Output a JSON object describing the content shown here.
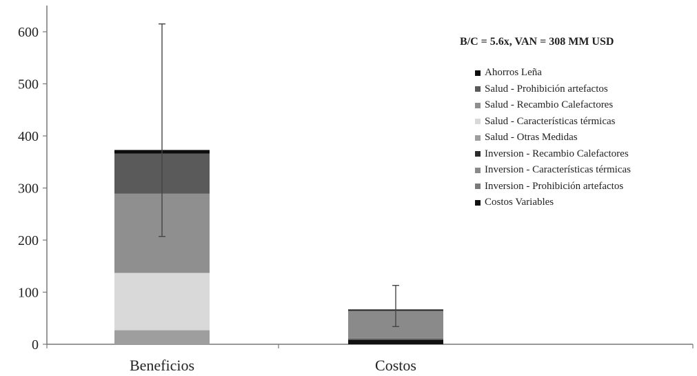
{
  "chart_data": {
    "type": "bar",
    "stacked": true,
    "categories": [
      "Beneficios",
      "Costos"
    ],
    "ylim": [
      0,
      600
    ],
    "yticks": [
      0,
      100,
      200,
      300,
      400,
      500,
      600
    ],
    "legend_title": "B/C = 5.6x, VAN = 308 MM USD",
    "legend_position": "right",
    "series": [
      {
        "name": "Ahorros Leña",
        "color": "#0d0d0d",
        "values": [
          7,
          0
        ]
      },
      {
        "name": "Salud - Prohibición artefactos",
        "color": "#5a5a5a",
        "values": [
          77,
          0
        ]
      },
      {
        "name": "Salud - Recambio Calefactores",
        "color": "#8f8f8f",
        "values": [
          152,
          0
        ]
      },
      {
        "name": "Salud - Características térmicas",
        "color": "#d9d9d9",
        "values": [
          110,
          0
        ]
      },
      {
        "name": "Salud - Otras Medidas",
        "color": "#9e9e9e",
        "values": [
          27,
          0
        ]
      },
      {
        "name": "Inversion - Recambio Calefactores",
        "color": "#2b2b2b",
        "values": [
          0,
          3
        ]
      },
      {
        "name": "Inversion - Características térmicas",
        "color": "#8a8a8a",
        "values": [
          0,
          52
        ]
      },
      {
        "name": "Inversion - Prohibición artefactos",
        "color": "#7a7a7a",
        "values": [
          0,
          3
        ]
      },
      {
        "name": "Costos Variables",
        "color": "#111111",
        "values": [
          0,
          9
        ]
      }
    ],
    "error_bars": [
      {
        "category": "Beneficios",
        "low": 207,
        "high": 615
      },
      {
        "category": "Costos",
        "low": 34,
        "high": 113
      }
    ]
  }
}
